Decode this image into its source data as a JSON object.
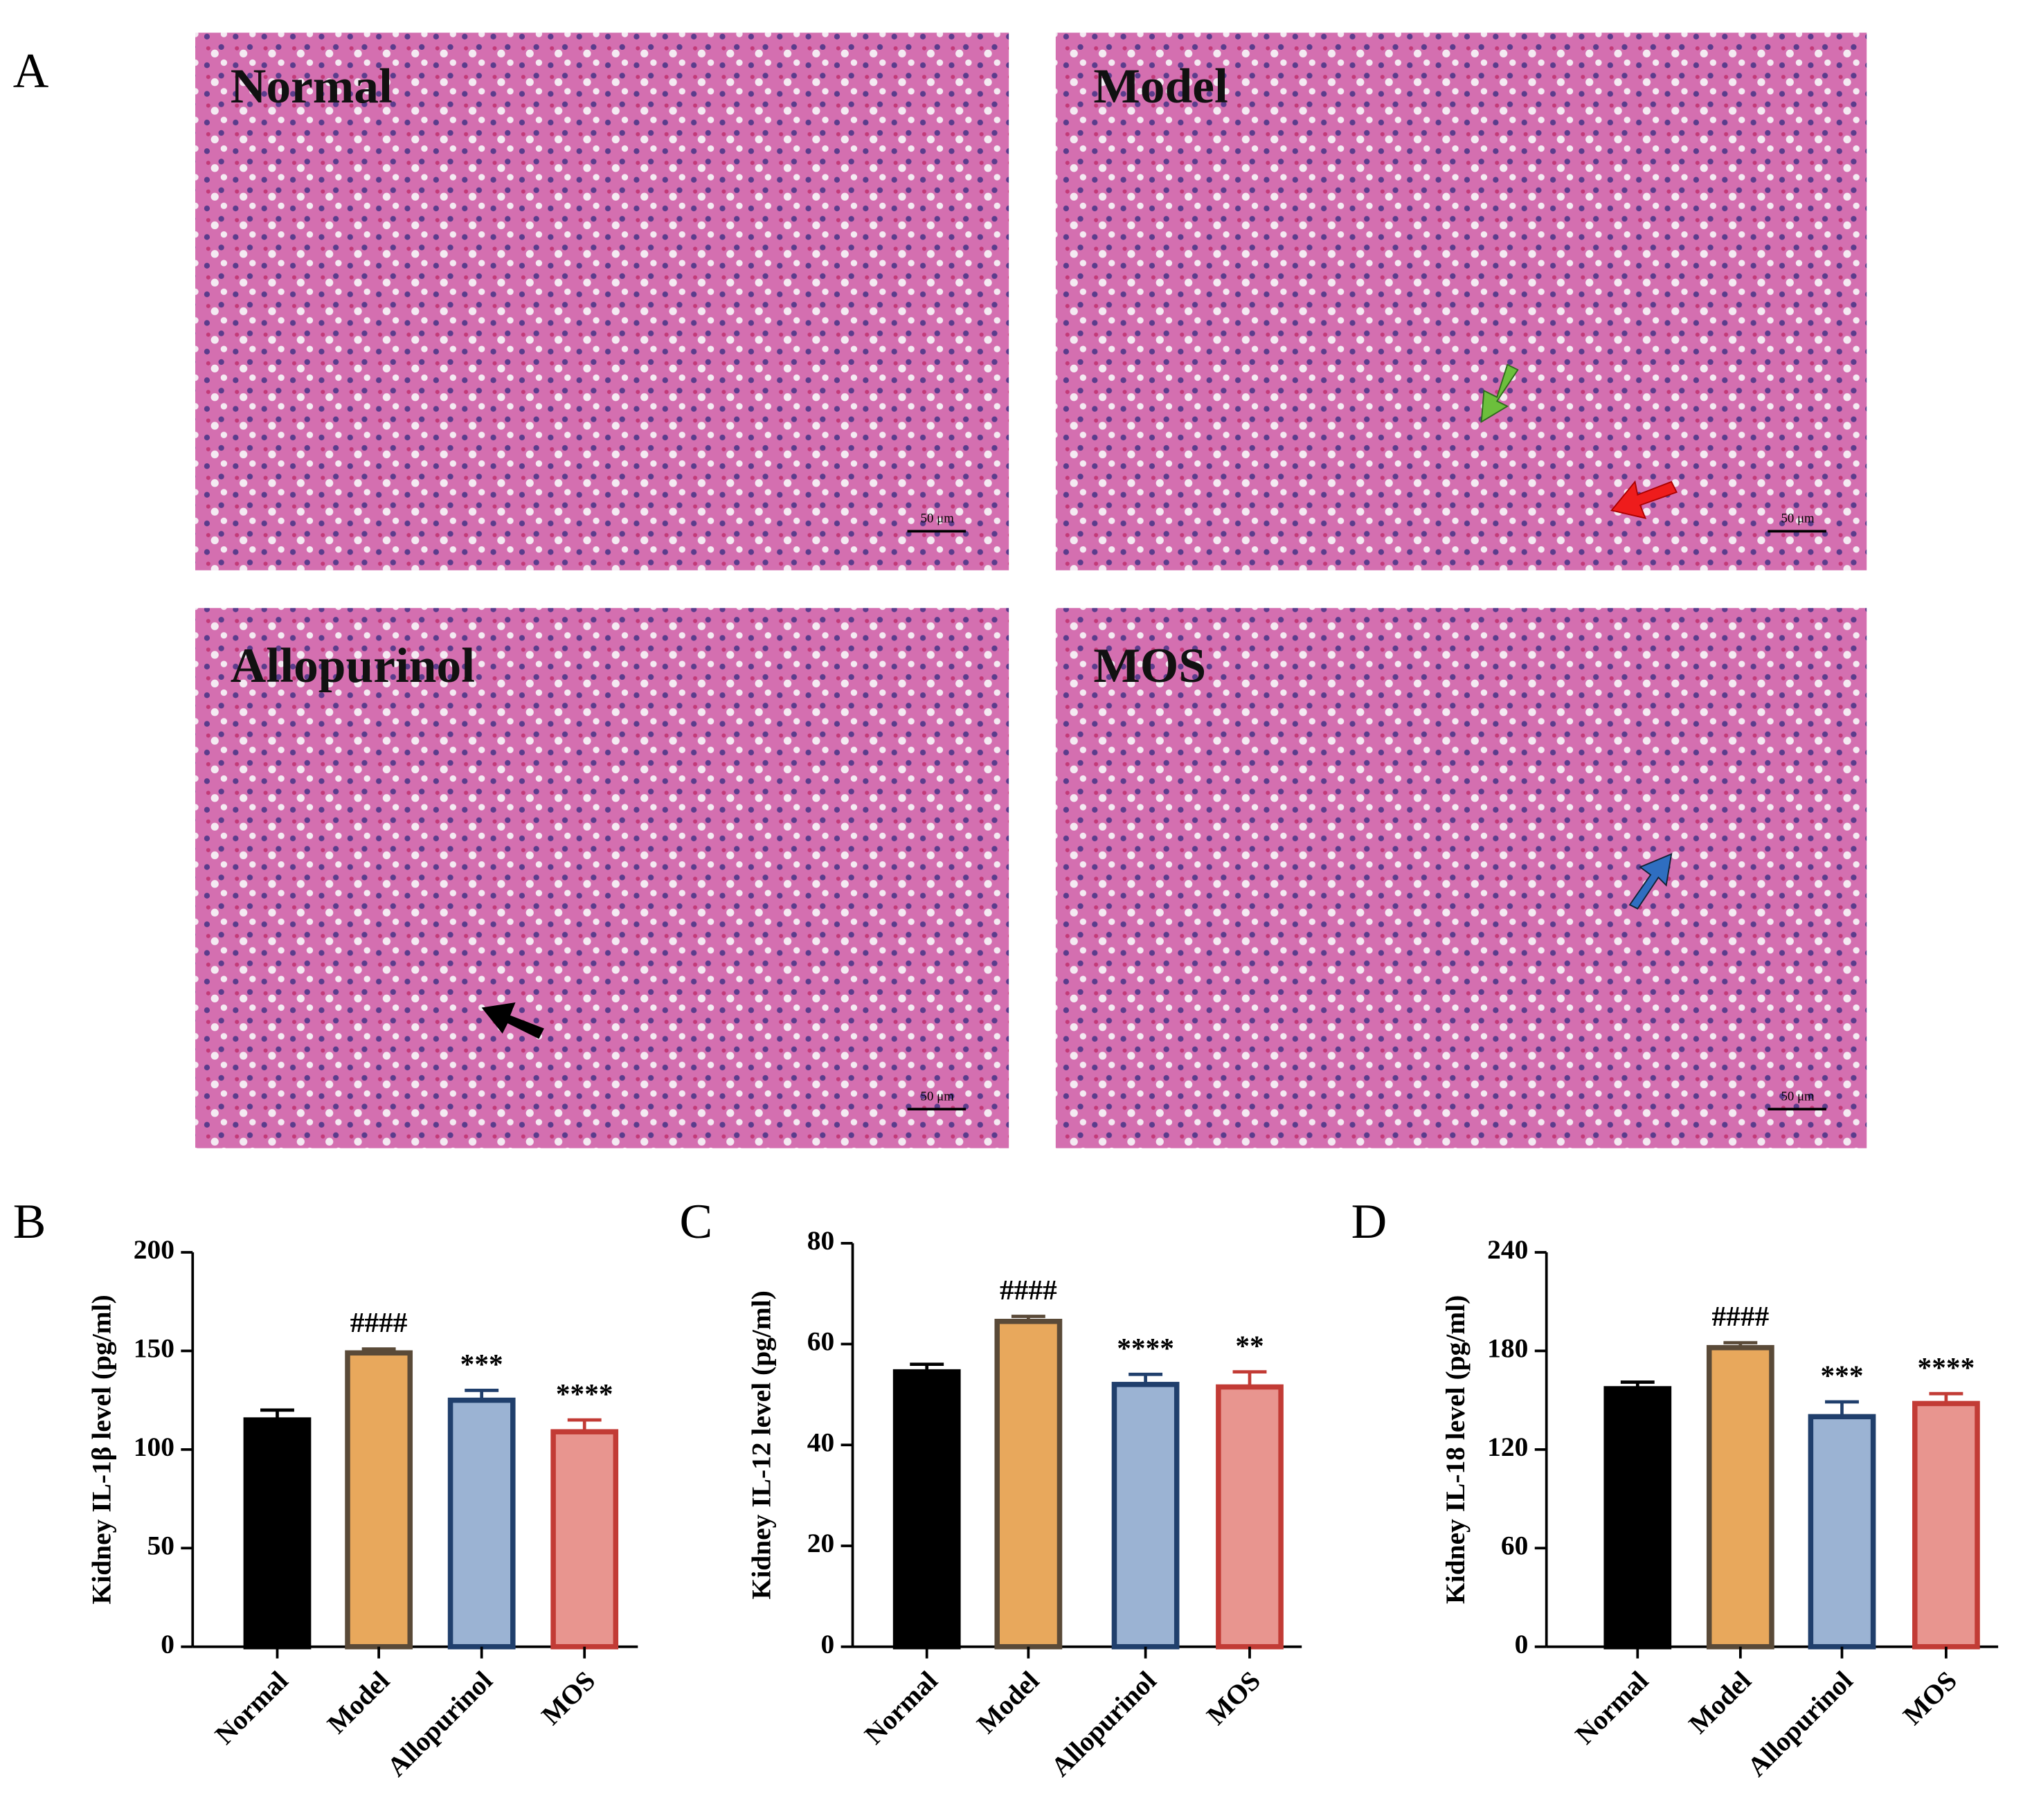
{
  "panel_labels": [
    "A",
    "B",
    "C",
    "D"
  ],
  "images": [
    {
      "label": "Normal",
      "scale_bar": "50 μm"
    },
    {
      "label": "Model",
      "scale_bar": "50 μm"
    },
    {
      "label": "Allopurinol",
      "scale_bar": "50 μm"
    },
    {
      "label": "MOS",
      "scale_bar": "50 μm"
    }
  ],
  "chart_data": [
    {
      "type": "bar",
      "ylabel": "Kidney IL-1β level  (pg/ml)",
      "categories": [
        "Normal",
        "Model",
        "Allopurinol",
        "MOS"
      ],
      "values": [
        115,
        149,
        125,
        109
      ],
      "errors": [
        5,
        2,
        5,
        6
      ],
      "annotations": [
        null,
        "####",
        "***",
        "****"
      ],
      "colors": [
        "#000000",
        "#e8a85c",
        "#9bb3d3",
        "#e8958f"
      ],
      "edgecolors": [
        "#000000",
        "#5a4a38",
        "#203f6c",
        "#c23b35"
      ],
      "ylim": [
        0,
        200
      ],
      "yticks": [
        0,
        50,
        100,
        150,
        200
      ]
    },
    {
      "type": "bar",
      "ylabel": "Kidney IL-12 level  (pg/ml)",
      "categories": [
        "Normal",
        "Model",
        "Allopurinol",
        "MOS"
      ],
      "values": [
        54.5,
        64.5,
        52,
        51.5
      ],
      "errors": [
        1.5,
        1,
        2,
        3
      ],
      "annotations": [
        null,
        "####",
        "****",
        "**"
      ],
      "colors": [
        "#000000",
        "#e8a85c",
        "#9bb3d3",
        "#e8958f"
      ],
      "edgecolors": [
        "#000000",
        "#5a4a38",
        "#203f6c",
        "#c23b35"
      ],
      "ylim": [
        0,
        80
      ],
      "yticks": [
        0,
        20,
        40,
        60,
        80
      ]
    },
    {
      "type": "bar",
      "ylabel": "Kidney IL-18 level  (pg/ml)",
      "categories": [
        "Normal",
        "Model",
        "Allopurinol",
        "MOS"
      ],
      "values": [
        157,
        182,
        140,
        148
      ],
      "errors": [
        4,
        3,
        9,
        6
      ],
      "annotations": [
        null,
        "####",
        "***",
        "****"
      ],
      "colors": [
        "#000000",
        "#e8a85c",
        "#9bb3d3",
        "#e8958f"
      ],
      "edgecolors": [
        "#000000",
        "#5a4a38",
        "#203f6c",
        "#c23b35"
      ],
      "ylim": [
        0,
        240
      ],
      "yticks": [
        0,
        60,
        120,
        180,
        240
      ]
    }
  ]
}
